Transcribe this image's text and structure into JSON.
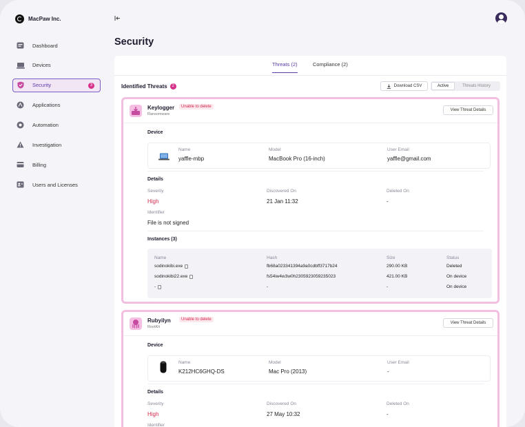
{
  "brand": {
    "name": "MacPaw Inc."
  },
  "sidebar": {
    "items": [
      {
        "label": "Dashboard",
        "icon": "dashboard-icon"
      },
      {
        "label": "Devices",
        "icon": "devices-icon"
      },
      {
        "label": "Security",
        "icon": "shield-icon",
        "badge": "3"
      },
      {
        "label": "Applications",
        "icon": "applications-icon"
      },
      {
        "label": "Automation",
        "icon": "automation-icon"
      },
      {
        "label": "Investigation",
        "icon": "investigation-icon"
      },
      {
        "label": "Billing",
        "icon": "billing-icon"
      },
      {
        "label": "Users and Licenses",
        "icon": "users-icon"
      }
    ]
  },
  "page": {
    "title": "Security"
  },
  "tabs": [
    {
      "label": "Threats (2)"
    },
    {
      "label": "Compliance (2)"
    }
  ],
  "threats": {
    "title": "Identified Threats",
    "count": "2",
    "download_label": "Download CSV",
    "segment": {
      "active": "Active",
      "history": "Threats History"
    }
  },
  "labels": {
    "device": "Device",
    "name": "Name",
    "model": "Model",
    "user_email": "User Email",
    "details": "Details",
    "severity": "Severity",
    "discovered_on": "Discovered On",
    "deleted_on": "Deleted On",
    "identifier": "Identifier",
    "view_details": "View Threat Details",
    "unable_to_delete": "Unable to delete",
    "inst_name": "Name",
    "inst_hash": "Hash",
    "inst_size": "Size",
    "inst_status": "Status"
  },
  "cards": [
    {
      "name": "Keylogger",
      "type": "Ransomware",
      "device": {
        "name": "yaffle-mbp",
        "model": "MacBook Pro (16-inch)",
        "email": "yaffle@gmail.com"
      },
      "details": {
        "severity": "High",
        "discovered": "21 Jan 11:32",
        "deleted": "-",
        "identifier": "File is not signed"
      },
      "instances_title": "Instances (3)",
      "instances": [
        {
          "name": "sodinokibi.exe",
          "hash": "fb68a023341394a9a0cdbff3717b24",
          "size": "290.00 KB",
          "status": "Deleted"
        },
        {
          "name": "sodinokibi22.exe",
          "hash": "fs54iw4w3w0h2305923059235023",
          "size": "421.00 KB",
          "status": "On device"
        },
        {
          "name": "-",
          "hash": "-",
          "size": "-",
          "status": "On device"
        }
      ]
    },
    {
      "name": "Rubyilyn",
      "type": "RootKit",
      "device": {
        "name": "K212HC6GHQ-DS",
        "model": "Mac Pro (2013)",
        "email": "-"
      },
      "details": {
        "severity": "High",
        "discovered": "27 May 10:32",
        "deleted": "-"
      }
    }
  ]
}
